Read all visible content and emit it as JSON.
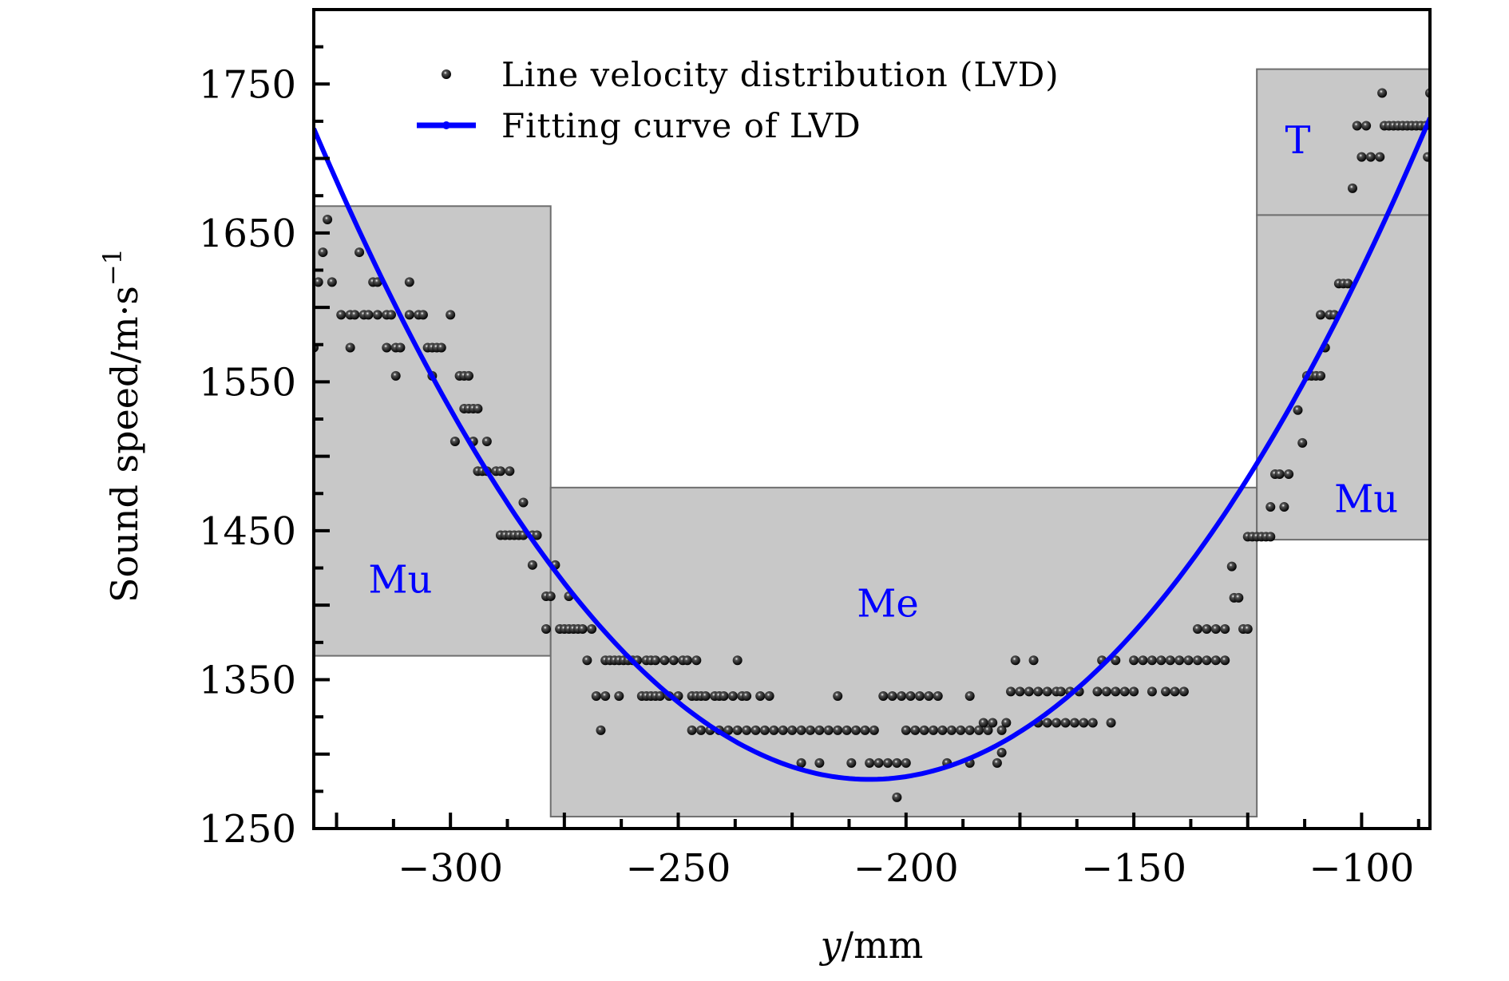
{
  "chart_data": {
    "type": "scatter",
    "title": "",
    "xlabel": "y/mm",
    "xlabel_italic_part": "y",
    "xlabel_rest": "/mm",
    "ylabel": "Sound speed/m·s⁻¹",
    "ylabel_main": "Sound speed/m·s",
    "ylabel_sup": "−1",
    "xlim": [
      -330,
      -85
    ],
    "ylim": [
      1250,
      1800
    ],
    "xticks": [
      -300,
      -250,
      -200,
      -150,
      -100
    ],
    "xtick_labels": [
      "−300",
      "−250",
      "−200",
      "−150",
      "−100"
    ],
    "xminor_step": 12.5,
    "yticks": [
      1250,
      1350,
      1450,
      1550,
      1650,
      1750
    ],
    "ytick_labels": [
      "1250",
      "1350",
      "1450",
      "1550",
      "1650",
      "1750"
    ],
    "yminor_step": 25,
    "grid": false,
    "legend": {
      "placement": "top-left",
      "entries": [
        {
          "label": "Line velocity distribution (LVD)",
          "marker": "dot",
          "color": "#000000"
        },
        {
          "label": "Fitting curve of LVD",
          "marker": "line",
          "color": "#0000ff"
        }
      ]
    },
    "regions": [
      {
        "label": "Mu",
        "x": [
          -330,
          -278
        ],
        "y": [
          1366,
          1668
        ]
      },
      {
        "label": "Me",
        "x": [
          -278,
          -123
        ],
        "y": [
          1258,
          1479
        ]
      },
      {
        "label": "T",
        "x": [
          -123,
          -85
        ],
        "y": [
          1662,
          1760
        ]
      },
      {
        "label": "Mu",
        "x": [
          -123,
          -85
        ],
        "y": [
          1444,
          1662
        ]
      }
    ],
    "region_labels": [
      {
        "text": "Mu",
        "x": -311,
        "y": 1417
      },
      {
        "text": "Me",
        "x": -204,
        "y": 1401
      },
      {
        "text": "T",
        "x": -114,
        "y": 1712
      },
      {
        "text": "Mu",
        "x": -99,
        "y": 1471
      }
    ],
    "series": [
      {
        "name": "Line velocity distribution (LVD)",
        "type": "scatter",
        "color": "#000000",
        "rows": [
          {
            "y": 1659,
            "x": [
              -327
            ]
          },
          {
            "y": 1637,
            "x": [
              -328,
              -320
            ]
          },
          {
            "y": 1617,
            "x": [
              -329,
              -326,
              -317,
              -316,
              -309
            ]
          },
          {
            "y": 1595,
            "x": [
              -324,
              -322,
              -321,
              -319,
              -318,
              -316,
              -314,
              -313,
              -309,
              -307,
              -306,
              -300
            ]
          },
          {
            "y": 1573,
            "x": [
              -330,
              -322,
              -314,
              -312,
              -311,
              -305,
              -304,
              -303,
              -302
            ]
          },
          {
            "y": 1554,
            "x": [
              -312,
              -304,
              -298,
              -297,
              -296
            ]
          },
          {
            "y": 1532,
            "x": [
              -297,
              -296,
              -295,
              -294
            ]
          },
          {
            "y": 1510,
            "x": [
              -299,
              -295,
              -292
            ]
          },
          {
            "y": 1490,
            "x": [
              -294,
              -293,
              -292,
              -290,
              -289,
              -287
            ]
          },
          {
            "y": 1469,
            "x": [
              -284
            ]
          },
          {
            "y": 1447,
            "x": [
              -289,
              -288,
              -287,
              -286,
              -285,
              -284,
              -282,
              -281
            ]
          },
          {
            "y": 1427,
            "x": [
              -282,
              -277
            ]
          },
          {
            "y": 1406,
            "x": [
              -279,
              -278,
              -274
            ]
          },
          {
            "y": 1384,
            "x": [
              -279,
              -276,
              -275,
              -274,
              -273,
              -272,
              -271,
              -269
            ]
          },
          {
            "y": 1363,
            "x": [
              -270,
              -266,
              -265,
              -264,
              -263,
              -262,
              -261,
              -260,
              -259,
              -257,
              -256,
              -255,
              -253,
              -251,
              -249,
              -248,
              -246,
              -237
            ]
          },
          {
            "y": 1339,
            "x": [
              -268,
              -266,
              -263,
              -258,
              -257,
              -256,
              -255,
              -254,
              -252,
              -250,
              -247,
              -246,
              -245,
              -244,
              -242,
              -241,
              -240,
              -238,
              -236,
              -235,
              -232,
              -230,
              -215,
              -205,
              -203,
              -201,
              -199,
              -197,
              -195,
              -193,
              -186
            ]
          },
          {
            "y": 1316,
            "x": [
              -267,
              -247,
              -245,
              -243,
              -241,
              -239,
              -237,
              -235,
              -233,
              -231,
              -229,
              -227,
              -225,
              -223,
              -221,
              -219,
              -217,
              -215,
              -213,
              -211,
              -209,
              -207,
              -200,
              -198,
              -196,
              -194,
              -192,
              -190,
              -188,
              -186,
              -184,
              -182,
              -179
            ]
          },
          {
            "y": 1294,
            "x": [
              -223,
              -219,
              -212,
              -208,
              -206,
              -204,
              -202,
              -200,
              -191,
              -186,
              -180
            ]
          },
          {
            "y": 1271,
            "x": [
              -202
            ]
          },
          {
            "y": 1301,
            "x": [
              -179
            ]
          },
          {
            "y": 1321,
            "x": [
              -183,
              -181,
              -178,
              -171,
              -169,
              -167,
              -165,
              -163,
              -161,
              -159,
              -155
            ]
          },
          {
            "y": 1342,
            "x": [
              -177,
              -175,
              -173,
              -171,
              -169,
              -167,
              -166,
              -164,
              -162,
              -158,
              -156,
              -154,
              -152,
              -150,
              -146,
              -143,
              -141,
              -139
            ]
          },
          {
            "y": 1363,
            "x": [
              -176,
              -172,
              -157,
              -154,
              -150,
              -148,
              -146,
              -144,
              -142,
              -140,
              -138,
              -136,
              -134,
              -132,
              -130
            ]
          },
          {
            "y": 1384,
            "x": [
              -136,
              -134,
              -132,
              -130,
              -126,
              -125
            ]
          },
          {
            "y": 1405,
            "x": [
              -128,
              -127
            ]
          },
          {
            "y": 1426,
            "x": [
              -128.5
            ]
          },
          {
            "y": 1446,
            "x": [
              -125,
              -124,
              -123,
              -122,
              -121,
              -120
            ]
          },
          {
            "y": 1466,
            "x": [
              -120,
              -117
            ]
          },
          {
            "y": 1488,
            "x": [
              -119,
              -118,
              -116
            ]
          },
          {
            "y": 1509,
            "x": [
              -113
            ]
          },
          {
            "y": 1531,
            "x": [
              -114
            ]
          },
          {
            "y": 1554,
            "x": [
              -112,
              -111,
              -110,
              -109
            ]
          },
          {
            "y": 1573,
            "x": [
              -108
            ]
          },
          {
            "y": 1595,
            "x": [
              -109,
              -107,
              -106
            ]
          },
          {
            "y": 1616,
            "x": [
              -105,
              -104,
              -103
            ]
          },
          {
            "y": 1680,
            "x": [
              -102
            ]
          },
          {
            "y": 1701,
            "x": [
              -100,
              -98,
              -96,
              -85.5
            ]
          },
          {
            "y": 1722,
            "x": [
              -101,
              -99,
              -95,
              -94,
              -93,
              -92,
              -91,
              -90,
              -89,
              -88,
              -87,
              -86
            ]
          },
          {
            "y": 1744,
            "x": [
              -95.5,
              -85
            ]
          }
        ]
      },
      {
        "name": "Fitting curve of LVD",
        "type": "line",
        "color": "#0000ff",
        "model": "quadratic",
        "vertex_x": -208,
        "vertex_y": 1283,
        "coef_a": 0.02936,
        "x_range": [
          -330,
          -85
        ]
      }
    ]
  }
}
